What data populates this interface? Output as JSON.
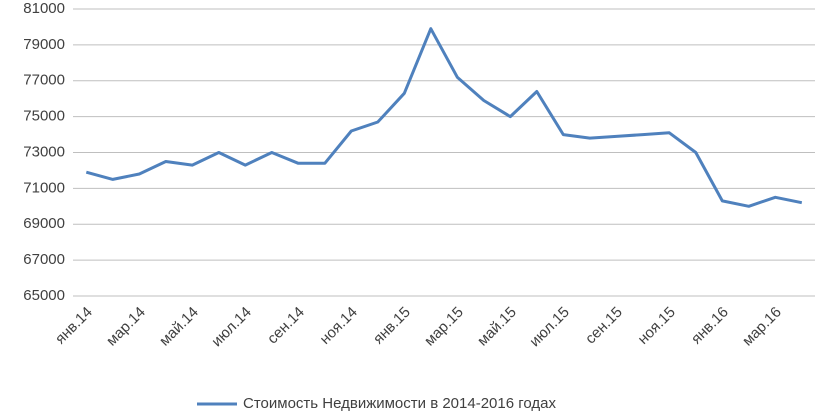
{
  "chart_data": {
    "type": "line",
    "categories": [
      "янв.14",
      null,
      "мар.14",
      null,
      "май.14",
      null,
      "июл.14",
      null,
      "сен.14",
      null,
      "ноя.14",
      null,
      "янв.15",
      null,
      "мар.15",
      null,
      "май.15",
      null,
      "июл.15",
      null,
      "сен.15",
      null,
      "ноя.15",
      null,
      "янв.16",
      null,
      "мар.16",
      null
    ],
    "series": [
      {
        "name": "Стоимость Недвижимости в 2014-2016 годах",
        "color": "#4f81bd",
        "values": [
          71900,
          71500,
          71800,
          72500,
          72300,
          73000,
          72300,
          73000,
          72400,
          72400,
          74200,
          74700,
          76300,
          79900,
          77200,
          75900,
          75000,
          76400,
          74000,
          73800,
          73900,
          74000,
          74100,
          73000,
          70300,
          70000,
          70500,
          70200
        ]
      }
    ],
    "ylim": [
      65000,
      81000
    ],
    "yticks": [
      65000,
      67000,
      69000,
      71000,
      73000,
      75000,
      77000,
      79000,
      81000
    ],
    "grid": true,
    "legend": "bottom"
  }
}
